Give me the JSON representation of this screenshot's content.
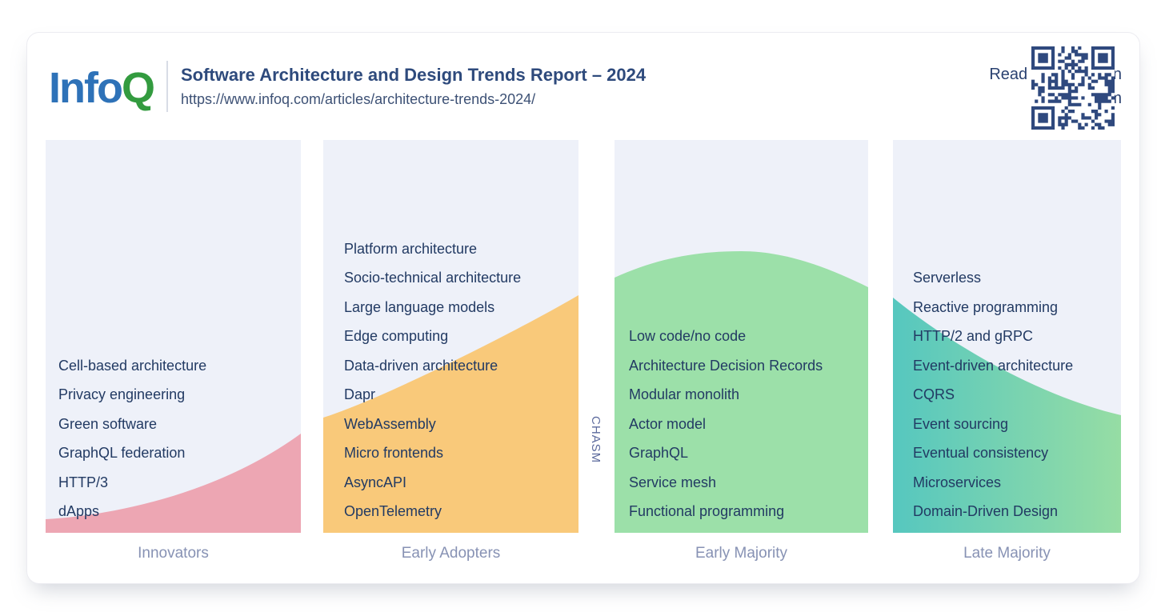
{
  "header": {
    "logo_part1": "Info",
    "logo_part2": "Q",
    "title": "Software Architecture and Design Trends Report – 2024",
    "url": "https://www.infoq.com/articles/architecture-trends-2024/",
    "cta_line1": "Read full article on",
    "cta_line2": "InfoQ.com"
  },
  "colors": {
    "logo_blue": "#2e72b8",
    "logo_green": "#339b3f",
    "title_text": "#2e4a7c",
    "item_text": "#223a63",
    "stage_label_text": "#8792b4",
    "chasm_text": "#5c6a9d",
    "column_bg": "#eef1f9",
    "innovators_fill": "#eda6b3",
    "early_adopters_fill": "#f9c97a",
    "early_majority_fill": "#9ce0a9",
    "late_majority_fill_start": "#56c7bf",
    "late_majority_fill_end": "#96dda4",
    "qr": "#2f497e"
  },
  "chart_data": {
    "type": "area",
    "title": "Software Architecture and Design Trends Report – 2024",
    "description": "Technology adoption lifecycle bell curve (crossing the chasm); each stage column lists the architecture and design trends currently in that adoption stage",
    "chasm_label": "CHASM",
    "categories": [
      "Innovators",
      "Early Adopters",
      "Early Majority",
      "Late Majority"
    ],
    "curve_relative_height_at_stage_edges": {
      "innovators": [
        0.03,
        0.25
      ],
      "early_adopters": [
        0.29,
        0.6
      ],
      "early_majority": [
        0.65,
        0.72,
        0.63
      ],
      "late_majority": [
        0.6,
        0.3
      ]
    },
    "legend_position": "none",
    "grid": false,
    "stages": [
      {
        "label": "Innovators",
        "color": "#eda6b3",
        "items": [
          "Cell-based architecture",
          "Privacy engineering",
          "Green software",
          "GraphQL federation",
          "HTTP/3",
          "dApps"
        ]
      },
      {
        "label": "Early Adopters",
        "color": "#f9c97a",
        "items": [
          "Platform architecture",
          "Socio-technical architecture",
          "Large language models",
          "Edge computing",
          "Data-driven architecture",
          "Dapr",
          "WebAssembly",
          "Micro frontends",
          "AsyncAPI",
          "OpenTelemetry"
        ]
      },
      {
        "label": "Early Majority",
        "color": "#9ce0a9",
        "items": [
          "Low code/no code",
          "Architecture Decision Records",
          "Modular monolith",
          "Actor model",
          "GraphQL",
          "Service mesh",
          "Functional programming"
        ]
      },
      {
        "label": "Late Majority",
        "color": "#56c7bf",
        "color_end": "#96dda4",
        "items": [
          "Serverless",
          "Reactive programming",
          "HTTP/2 and gRPC",
          "Event-driven architecture",
          "CQRS",
          "Event sourcing",
          "Eventual consistency",
          "Microservices",
          "Domain-Driven Design"
        ]
      }
    ]
  }
}
